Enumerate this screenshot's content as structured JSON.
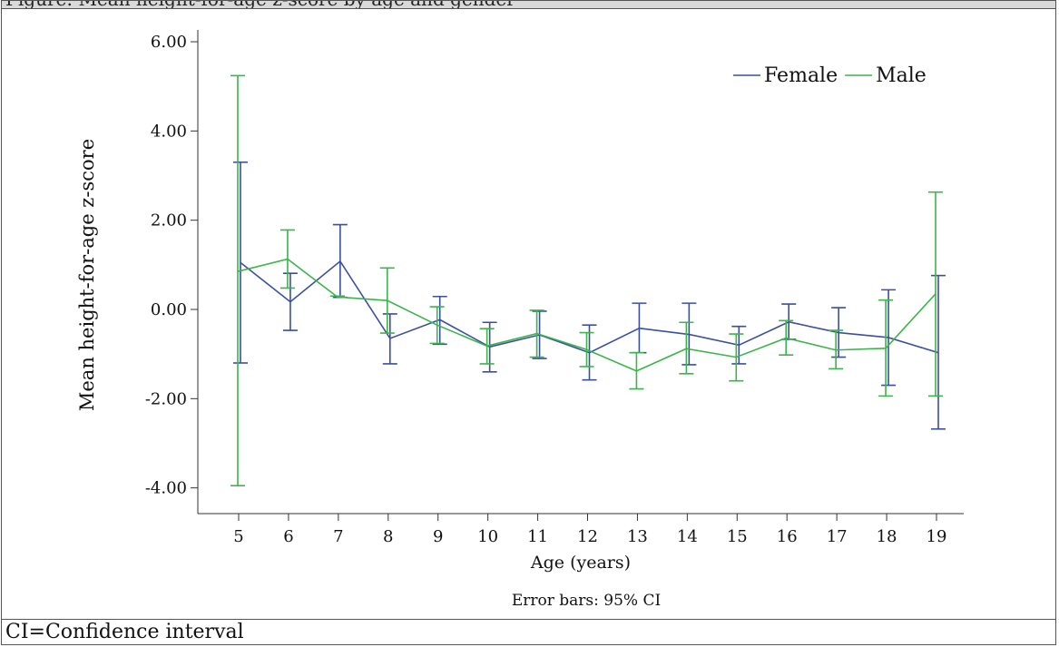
{
  "figure": {
    "header_text": "Figure: Mean height-for-age z-score by age and gender",
    "footnote": "CI=Confidence interval"
  },
  "chart_data": {
    "type": "line",
    "title": "",
    "xlabel": "Age (years)",
    "ylabel": "Mean height-for-age z-score",
    "note": "Error bars: 95% CI",
    "x": [
      5,
      6,
      7,
      8,
      9,
      10,
      11,
      12,
      13,
      14,
      15,
      16,
      17,
      18,
      19
    ],
    "xlim": [
      4.5,
      19.5
    ],
    "ylim": [
      -4.6,
      6.2
    ],
    "y_ticks": [
      -4.0,
      -2.0,
      0.0,
      2.0,
      4.0,
      6.0
    ],
    "y_tick_labels": [
      "-4.00",
      "-2.00",
      "0.00",
      "2.00",
      "4.00",
      "6.00"
    ],
    "x_tick_labels": [
      "5",
      "6",
      "7",
      "8",
      "9",
      "10",
      "11",
      "12",
      "13",
      "14",
      "15",
      "16",
      "17",
      "18",
      "19"
    ],
    "grid": false,
    "legend_position": "top-right",
    "series": [
      {
        "name": "Female",
        "color": "#3a4fa0",
        "mean": [
          1.05,
          0.17,
          1.08,
          -0.65,
          -0.23,
          -0.84,
          -0.57,
          -0.97,
          -0.42,
          -0.56,
          -0.8,
          -0.28,
          -0.52,
          -0.63,
          -0.97
        ],
        "ci_low": [
          -1.2,
          -0.47,
          0.27,
          -1.22,
          -0.78,
          -1.4,
          -1.1,
          -1.58,
          -0.97,
          -1.24,
          -1.22,
          -0.67,
          -1.07,
          -1.7,
          -2.68
        ],
        "ci_high": [
          3.3,
          0.81,
          1.9,
          -0.1,
          0.29,
          -0.29,
          -0.04,
          -0.35,
          0.14,
          0.14,
          -0.38,
          0.12,
          0.04,
          0.44,
          0.76
        ]
      },
      {
        "name": "Male",
        "color": "#3cb44b",
        "mean": [
          0.85,
          1.13,
          0.28,
          0.2,
          -0.35,
          -0.82,
          -0.54,
          -0.9,
          -1.38,
          -0.88,
          -1.07,
          -0.64,
          -0.91,
          -0.87,
          0.35
        ],
        "ci_low": [
          -3.95,
          0.48,
          0.3,
          -0.53,
          -0.76,
          -1.22,
          -1.07,
          -1.28,
          -1.78,
          -1.44,
          -1.6,
          -1.02,
          -1.33,
          -1.94,
          -1.94
        ],
        "ci_high": [
          5.24,
          1.78,
          0.3,
          0.93,
          0.06,
          -0.43,
          -0.02,
          -0.52,
          -0.97,
          -0.29,
          -0.55,
          -0.25,
          -0.47,
          0.21,
          2.63
        ]
      }
    ]
  }
}
